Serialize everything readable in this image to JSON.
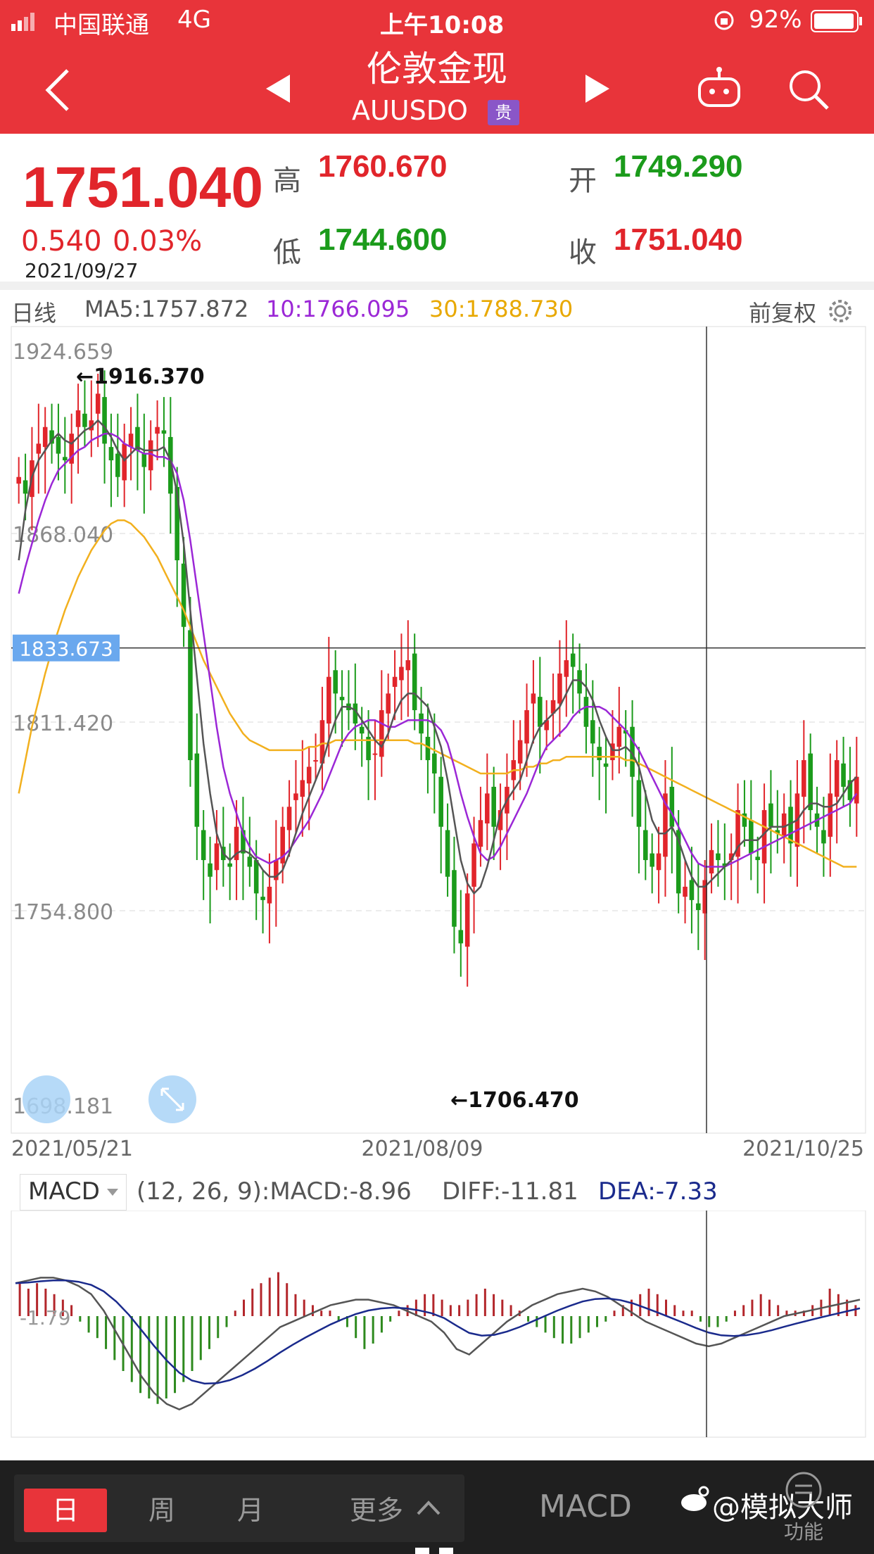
{
  "status_bar": {
    "carrier": "中国联通",
    "network": "4G",
    "time": "上午10:08",
    "battery": "92%"
  },
  "header": {
    "title": "伦敦金现",
    "symbol": "AUUSDO",
    "badge": "贵"
  },
  "quote": {
    "price": "1751.040",
    "change": "0.540",
    "change_pct": "0.03%",
    "date": "2021/09/27",
    "high_label": "高",
    "high": "1760.670",
    "open_label": "开",
    "open": "1749.290",
    "low_label": "低",
    "low": "1744.600",
    "close_label": "收",
    "close": "1751.040"
  },
  "indicators": {
    "period": "日线",
    "ma5": "MA5:1757.872",
    "ma10": "10:1766.095",
    "ma30": "30:1788.730",
    "adjust": "前复权"
  },
  "macd": {
    "selector": "MACD",
    "params": "(12, 26, 9):MACD:-8.96",
    "diff": "DIFF:-11.81",
    "dea": "DEA:-7.33"
  },
  "bottom": {
    "tabs": [
      "日",
      "周",
      "月",
      "更多"
    ],
    "indicator": "MACD",
    "function_label": "功能",
    "watermark": "@模拟大师"
  },
  "colors": {
    "up": "#e1252b",
    "down": "#1b9b1b",
    "ma5": "#555555",
    "ma10": "#9b27d6",
    "ma30": "#f2b01e",
    "dea": "#1a2a8c",
    "header": "#e8343a"
  },
  "chart_data": [
    {
      "type": "candlestick",
      "title": "",
      "x_labels": [
        "2021/05/21",
        "2021/08/09",
        "2021/10/25"
      ],
      "y_ticks": [
        1924.659,
        1868.04,
        1811.42,
        1754.8,
        1698.181
      ],
      "ylim": [
        1698.181,
        1924.659
      ],
      "crosshair_value": "1833.673",
      "annotations": [
        {
          "text": "←1916.370",
          "value": 1916.37
        },
        {
          "text": "←1706.470",
          "value": 1706.47
        }
      ],
      "series": [
        {
          "name": "MA5",
          "color": "#555555"
        },
        {
          "name": "10",
          "color": "#9b27d6"
        },
        {
          "name": "30",
          "color": "#f2b01e"
        }
      ],
      "closes": [
        1885,
        1880,
        1890,
        1895,
        1900,
        1895,
        1892,
        1890,
        1898,
        1905,
        1900,
        1902,
        1910,
        1895,
        1890,
        1885,
        1895,
        1898,
        1893,
        1888,
        1896,
        1900,
        1898,
        1880,
        1860,
        1840,
        1800,
        1780,
        1770,
        1765,
        1775,
        1770,
        1768,
        1780,
        1772,
        1768,
        1760,
        1758,
        1762,
        1770,
        1780,
        1786,
        1790,
        1794,
        1798,
        1800,
        1812,
        1825,
        1820,
        1818,
        1815,
        1811,
        1808,
        1800,
        1802,
        1815,
        1820,
        1825,
        1828,
        1830,
        1815,
        1808,
        1800,
        1796,
        1780,
        1765,
        1750,
        1745,
        1760,
        1775,
        1782,
        1790,
        1780,
        1785,
        1792,
        1800,
        1806,
        1815,
        1820,
        1810,
        1812,
        1818,
        1826,
        1830,
        1828,
        1820,
        1810,
        1805,
        1800,
        1798,
        1805,
        1810,
        1808,
        1795,
        1780,
        1770,
        1768,
        1772,
        1790,
        1780,
        1760,
        1762,
        1758,
        1755,
        1764,
        1773,
        1770,
        1768,
        1772,
        1785,
        1780,
        1772,
        1770,
        1785,
        1780,
        1778,
        1784,
        1775,
        1790,
        1800,
        1785,
        1780,
        1775,
        1790,
        1800,
        1792,
        1788,
        1795
      ],
      "ma5": [
        1860,
        1875,
        1885,
        1890,
        1893,
        1896,
        1898,
        1896,
        1895,
        1897,
        1899,
        1900,
        1902,
        1900,
        1897,
        1893,
        1890,
        1892,
        1894,
        1893,
        1893,
        1893,
        1894,
        1890,
        1880,
        1865,
        1845,
        1825,
        1805,
        1790,
        1778,
        1772,
        1770,
        1772,
        1773,
        1772,
        1770,
        1767,
        1765,
        1765,
        1767,
        1772,
        1778,
        1784,
        1789,
        1794,
        1799,
        1806,
        1812,
        1816,
        1816,
        1815,
        1812,
        1809,
        1806,
        1804,
        1808,
        1814,
        1818,
        1820,
        1820,
        1818,
        1816,
        1810,
        1804,
        1794,
        1782,
        1770,
        1763,
        1760,
        1762,
        1768,
        1776,
        1784,
        1788,
        1791,
        1794,
        1800,
        1806,
        1810,
        1812,
        1814,
        1816,
        1820,
        1824,
        1824,
        1822,
        1818,
        1812,
        1807,
        1803,
        1803,
        1804,
        1802,
        1798,
        1790,
        1782,
        1778,
        1778,
        1780,
        1776,
        1770,
        1765,
        1762,
        1762,
        1764,
        1766,
        1768,
        1770,
        1774,
        1776,
        1776,
        1776,
        1778,
        1780,
        1780,
        1780,
        1781,
        1782,
        1785,
        1787,
        1787,
        1786,
        1786,
        1787,
        1790,
        1793,
        1795
      ],
      "ma10": [
        1850,
        1858,
        1865,
        1872,
        1878,
        1883,
        1887,
        1889,
        1891,
        1893,
        1894,
        1896,
        1897,
        1898,
        1898,
        1897,
        1895,
        1894,
        1893,
        1892,
        1892,
        1891,
        1891,
        1890,
        1886,
        1878,
        1866,
        1852,
        1838,
        1824,
        1810,
        1798,
        1790,
        1784,
        1778,
        1774,
        1771,
        1770,
        1769,
        1770,
        1771,
        1773,
        1776,
        1779,
        1782,
        1786,
        1790,
        1795,
        1800,
        1805,
        1808,
        1810,
        1811,
        1812,
        1812,
        1811,
        1810,
        1810,
        1811,
        1812,
        1812,
        1812,
        1812,
        1811,
        1809,
        1805,
        1798,
        1790,
        1783,
        1777,
        1772,
        1770,
        1771,
        1774,
        1778,
        1782,
        1786,
        1790,
        1795,
        1800,
        1804,
        1806,
        1808,
        1810,
        1813,
        1815,
        1816,
        1816,
        1816,
        1815,
        1813,
        1811,
        1809,
        1806,
        1803,
        1799,
        1795,
        1791,
        1787,
        1784,
        1780,
        1776,
        1772,
        1769,
        1768,
        1768,
        1768,
        1768,
        1769,
        1770,
        1771,
        1772,
        1773,
        1774,
        1775,
        1776,
        1777,
        1778,
        1779,
        1780,
        1781,
        1782,
        1783,
        1784,
        1785,
        1786,
        1787,
        1790
      ],
      "ma30": [
        1790,
        1800,
        1810,
        1818,
        1826,
        1833,
        1839,
        1845,
        1850,
        1855,
        1859,
        1863,
        1866,
        1869,
        1871,
        1872,
        1872,
        1871,
        1869,
        1867,
        1864,
        1861,
        1857,
        1853,
        1849,
        1845,
        1840,
        1835,
        1830,
        1826,
        1822,
        1818,
        1814,
        1811,
        1808,
        1806,
        1805,
        1804,
        1803,
        1803,
        1803,
        1803,
        1803,
        1803,
        1804,
        1804,
        1805,
        1805,
        1806,
        1806,
        1806,
        1806,
        1806,
        1806,
        1806,
        1806,
        1806,
        1806,
        1806,
        1806,
        1805,
        1805,
        1804,
        1803,
        1802,
        1801,
        1800,
        1799,
        1798,
        1797,
        1796,
        1796,
        1796,
        1796,
        1796,
        1797,
        1797,
        1798,
        1798,
        1799,
        1799,
        1800,
        1800,
        1801,
        1801,
        1801,
        1801,
        1801,
        1801,
        1801,
        1801,
        1801,
        1800,
        1800,
        1799,
        1798,
        1797,
        1796,
        1795,
        1794,
        1793,
        1792,
        1791,
        1790,
        1789,
        1788,
        1787,
        1786,
        1785,
        1784,
        1783,
        1782,
        1781,
        1780,
        1779,
        1778,
        1777,
        1776,
        1775,
        1774,
        1773,
        1772,
        1771,
        1770,
        1769,
        1768,
        1768,
        1768
      ]
    },
    {
      "type": "bar",
      "title": "MACD",
      "y_ticks": [
        -1.79
      ],
      "series": [
        {
          "name": "DIFF",
          "color": "#555555"
        },
        {
          "name": "DEA",
          "color": "#1a2a8c"
        }
      ],
      "histogram": [
        6,
        5,
        6,
        5,
        4,
        3,
        2,
        -1,
        -3,
        -4,
        -6,
        -8,
        -10,
        -12,
        -14,
        -15,
        -16,
        -15,
        -14,
        -12,
        -10,
        -8,
        -6,
        -4,
        -2,
        1,
        3,
        5,
        6,
        7,
        8,
        6,
        4,
        3,
        2,
        1,
        1,
        -1,
        -2,
        -4,
        -6,
        -5,
        -3,
        -1,
        1,
        2,
        3,
        4,
        4,
        3,
        2,
        2,
        3,
        4,
        5,
        4,
        3,
        2,
        1,
        -1,
        -2,
        -3,
        -4,
        -5,
        -5,
        -4,
        -3,
        -2,
        -1,
        1,
        2,
        3,
        4,
        5,
        4,
        3,
        2,
        1,
        1,
        -1,
        -2,
        -2,
        -1,
        1,
        2,
        3,
        4,
        3,
        2,
        1,
        1,
        1,
        2,
        3,
        5,
        4,
        3,
        2
      ],
      "diff": [
        6,
        6.5,
        7,
        7,
        6.5,
        5.5,
        4,
        1,
        -3,
        -7,
        -11,
        -14,
        -16,
        -17,
        -16,
        -14,
        -12,
        -10,
        -8,
        -6,
        -4,
        -2,
        -1,
        0,
        1,
        2,
        2.5,
        3,
        3,
        2.5,
        2,
        1,
        0,
        -1,
        -3,
        -6,
        -7,
        -5,
        -3,
        -1,
        0.5,
        2,
        3,
        4,
        4.5,
        5,
        4.5,
        3.5,
        2,
        0.5,
        -1,
        -2,
        -3,
        -4,
        -5,
        -5.5,
        -5,
        -4,
        -3,
        -2,
        -1,
        0,
        0.5,
        1,
        1.5,
        2,
        2.5,
        3
      ]
    }
  ]
}
